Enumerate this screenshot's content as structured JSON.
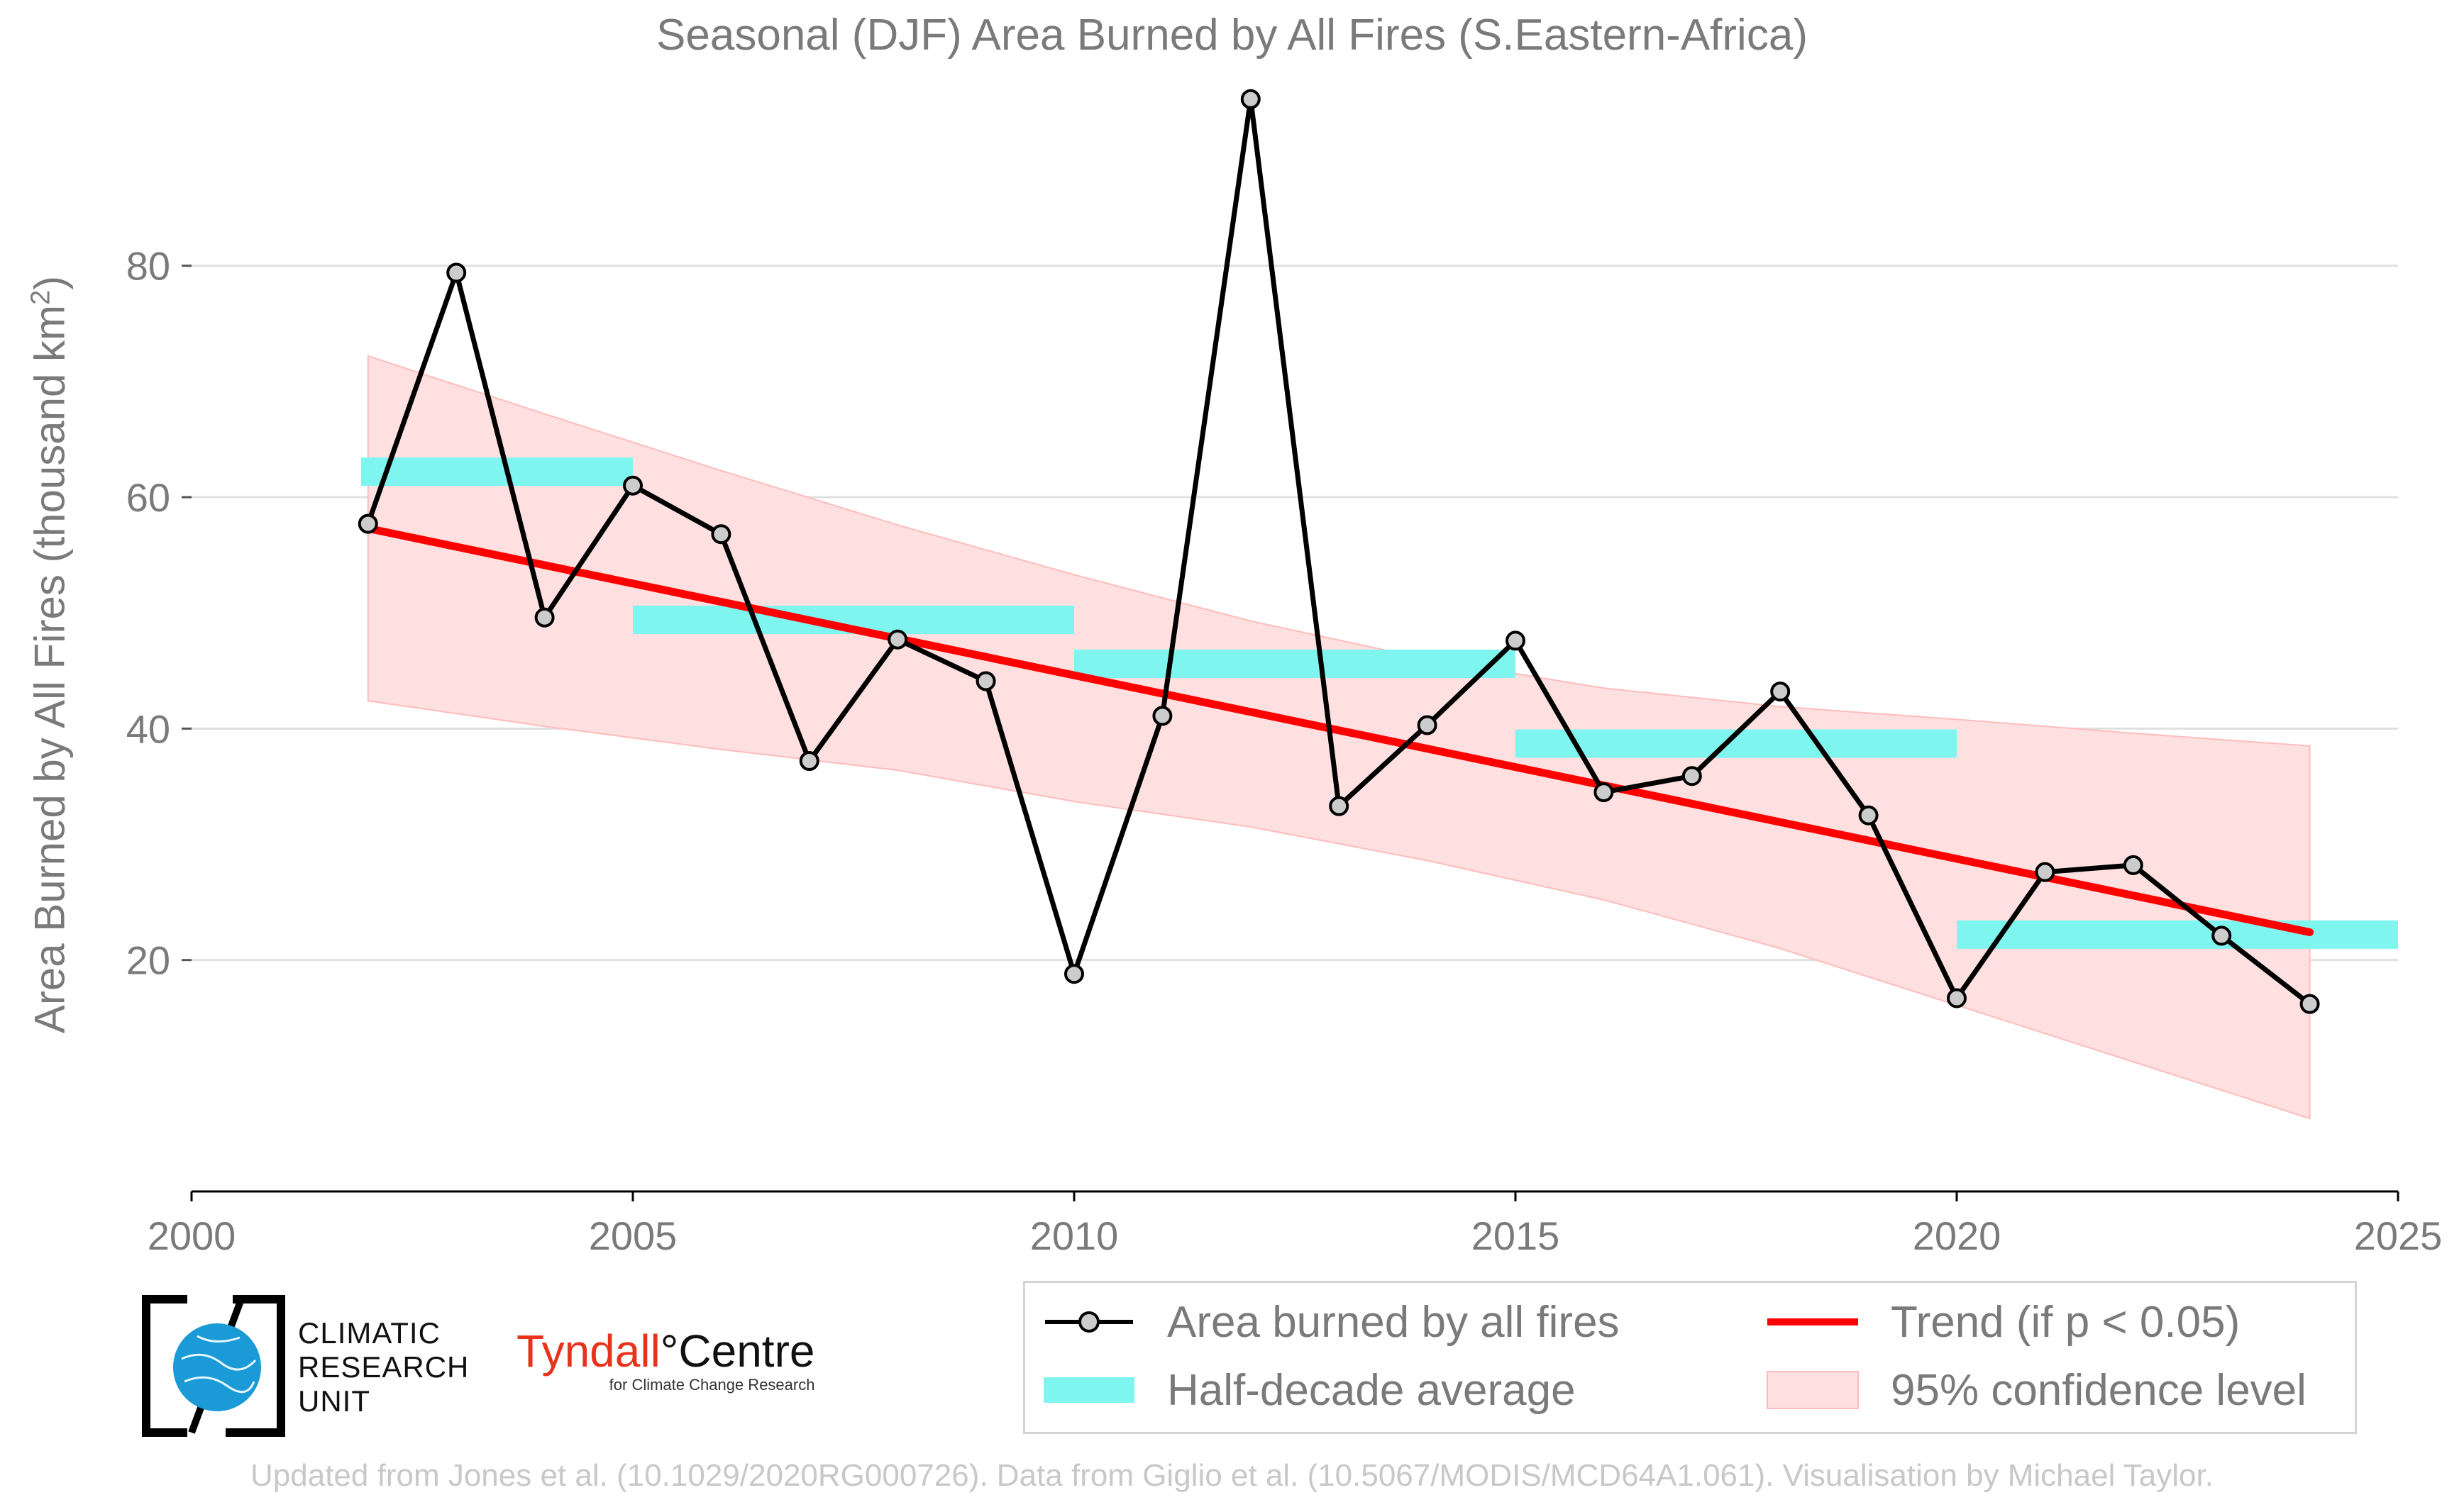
{
  "title": "Seasonal (DJF) Area Burned by All Fires (S.Eastern-Africa)",
  "credit": "Updated from Jones et al. (10.1029/2020RG000726). Data from Giglio et al. (10.5067/MODIS/MCD64A1.061). Visualisation by Michael Taylor.",
  "logos": {
    "cru_lines": [
      "CLIMATIC",
      "RESEARCH",
      "UNIT"
    ],
    "tyndall_red": "Tyndall",
    "tyndall_black": "°Centre",
    "tyndall_sub": "for Climate Change Research"
  },
  "legend": {
    "area_burned": "Area burned by all fires",
    "half_decade": "Half-decade average",
    "trend": "Trend (if p < 0.05)",
    "confidence": "95% confidence level"
  },
  "colors": {
    "series": "#000000",
    "marker_fill": "#cccccc",
    "half_decade": "#7ff5f0",
    "trend": "#ff0000",
    "confidence_fill": "#ffe0e0",
    "confidence_edge": "#ffbcbc",
    "text": "#7a7a7a",
    "grid": "#e0e0e0"
  },
  "chart_data": {
    "type": "line",
    "title": "Seasonal (DJF) Area Burned by All Fires (S.Eastern-Africa)",
    "xlabel": "",
    "ylabel_main": "Area Burned by All Fires (thousand km",
    "ylabel_sup": "2",
    "ylabel_end": ")",
    "xlim": [
      2000,
      2025
    ],
    "ylim": [
      0,
      95
    ],
    "xticks": [
      2000,
      2005,
      2010,
      2015,
      2020,
      2025
    ],
    "yticks": [
      20,
      40,
      60,
      80
    ],
    "grid": "horizontal",
    "legend_position": "bottom-right",
    "series": [
      {
        "name": "Area burned by all fires",
        "x": [
          2002,
          2003,
          2004,
          2005,
          2006,
          2007,
          2008,
          2009,
          2010,
          2011,
          2012,
          2013,
          2014,
          2015,
          2016,
          2017,
          2018,
          2019,
          2020,
          2021,
          2022,
          2023,
          2024
        ],
        "y": [
          57.7,
          79.4,
          49.6,
          61.0,
          56.8,
          37.2,
          47.7,
          44.1,
          18.8,
          41.1,
          94.4,
          33.3,
          40.3,
          47.6,
          34.5,
          35.9,
          43.2,
          32.5,
          16.7,
          27.6,
          28.2,
          22.1,
          16.2
        ]
      }
    ],
    "half_decade_average": [
      {
        "x0": 2002,
        "x1": 2005,
        "y": 62.2
      },
      {
        "x0": 2005,
        "x1": 2010,
        "y": 49.4
      },
      {
        "x0": 2010,
        "x1": 2015,
        "y": 45.6
      },
      {
        "x0": 2015,
        "x1": 2020,
        "y": 38.7
      },
      {
        "x0": 2020,
        "x1": 2025,
        "y": 22.2
      }
    ],
    "trend": {
      "x": [
        2002,
        2024
      ],
      "y": [
        57.3,
        22.4
      ]
    },
    "confidence_band": {
      "x": [
        2002,
        2004,
        2006,
        2008,
        2010,
        2012,
        2014,
        2016,
        2018,
        2020,
        2022,
        2024
      ],
      "upper": [
        72.2,
        67.2,
        62.3,
        57.6,
        53.3,
        49.3,
        46.0,
        43.5,
        41.9,
        40.8,
        39.6,
        38.5
      ],
      "lower": [
        42.4,
        40.2,
        38.2,
        36.4,
        33.7,
        31.5,
        28.6,
        25.2,
        21.0,
        16.1,
        11.2,
        6.3
      ]
    }
  }
}
